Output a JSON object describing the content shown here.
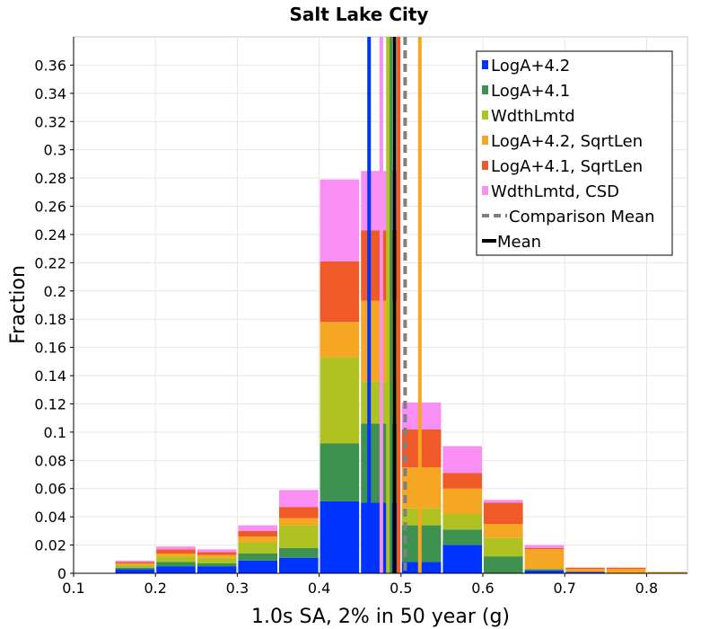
{
  "chart_data": {
    "type": "bar",
    "stacked": true,
    "title": "Salt Lake City",
    "xlabel": "1.0s SA, 2% in 50 year (g)",
    "ylabel": "Fraction",
    "xlim": [
      0.1,
      0.85
    ],
    "ylim": [
      0,
      0.38
    ],
    "x_ticks": [
      "0.1",
      "0.2",
      "0.3",
      "0.4",
      "0.5",
      "0.6",
      "0.7",
      "0.8"
    ],
    "y_ticks": [
      "0",
      "0.02",
      "0.04",
      "0.06",
      "0.08",
      "0.1",
      "0.12",
      "0.14",
      "0.16",
      "0.18",
      "0.2",
      "0.22",
      "0.24",
      "0.26",
      "0.28",
      "0.3",
      "0.32",
      "0.34",
      "0.36"
    ],
    "grid": true,
    "legend_position": "top-right",
    "bin_width": 0.05,
    "bin_centers": [
      0.125,
      0.175,
      0.225,
      0.275,
      0.325,
      0.375,
      0.425,
      0.475,
      0.525,
      0.575,
      0.625,
      0.675,
      0.725,
      0.775,
      0.825
    ],
    "series": [
      {
        "name": "LogA+4.2",
        "color": "#0033ff",
        "values": [
          0.0,
          0.003,
          0.005,
          0.005,
          0.009,
          0.011,
          0.051,
          0.05,
          0.008,
          0.02,
          0.0,
          0.002,
          0.001,
          0.0,
          0.0
        ]
      },
      {
        "name": "LogA+4.1",
        "color": "#3f9150",
        "values": [
          0.0,
          0.001,
          0.003,
          0.002,
          0.005,
          0.007,
          0.041,
          0.056,
          0.026,
          0.011,
          0.012,
          0.001,
          0.0,
          0.0,
          0.0
        ]
      },
      {
        "name": "WdthLmtd",
        "color": "#b0c222",
        "values": [
          0.0,
          0.002,
          0.004,
          0.004,
          0.008,
          0.016,
          0.061,
          0.03,
          0.012,
          0.011,
          0.013,
          0.0,
          0.0,
          0.0,
          0.0
        ]
      },
      {
        "name": "LogA+4.2, SqrtLen",
        "color": "#f5a623",
        "values": [
          0.0,
          0.001,
          0.002,
          0.002,
          0.004,
          0.005,
          0.025,
          0.057,
          0.029,
          0.018,
          0.01,
          0.014,
          0.002,
          0.003,
          0.001
        ]
      },
      {
        "name": "LogA+4.1, SqrtLen",
        "color": "#f05a28",
        "values": [
          0.0,
          0.001,
          0.003,
          0.002,
          0.004,
          0.008,
          0.043,
          0.05,
          0.027,
          0.011,
          0.015,
          0.001,
          0.001,
          0.001,
          0.0
        ]
      },
      {
        "name": "WdthLmtd, CSD",
        "color": "#f98ef5",
        "values": [
          0.0,
          0.001,
          0.002,
          0.002,
          0.004,
          0.012,
          0.058,
          0.042,
          0.019,
          0.019,
          0.002,
          0.002,
          0.0,
          0.0,
          0.0
        ]
      }
    ],
    "vertical_lines": [
      {
        "label": "LogA+4.2",
        "x": 0.461,
        "color": "#0033ff",
        "style": "solid"
      },
      {
        "label": "LogA+4.1",
        "x": 0.487,
        "color": "#3f9150",
        "style": "solid"
      },
      {
        "label": "WdthLmtd",
        "x": 0.484,
        "color": "#b0c222",
        "style": "solid"
      },
      {
        "label": "LogA+4.2, SqrtLen",
        "x": 0.523,
        "color": "#f5a623",
        "style": "solid"
      },
      {
        "label": "LogA+4.1, SqrtLen",
        "x": 0.497,
        "color": "#f05a28",
        "style": "solid"
      },
      {
        "label": "WdthLmtd, CSD",
        "x": 0.476,
        "color": "#f98ef5",
        "style": "solid"
      },
      {
        "label": "Comparison Mean",
        "x": 0.505,
        "color": "#808080",
        "style": "dashed"
      },
      {
        "label": "Mean",
        "x": 0.492,
        "color": "#000000",
        "style": "solid"
      }
    ],
    "legend": [
      {
        "label": "LogA+4.2",
        "color": "#0033ff",
        "marker": "square"
      },
      {
        "label": "LogA+4.1",
        "color": "#3f9150",
        "marker": "square"
      },
      {
        "label": "WdthLmtd",
        "color": "#b0c222",
        "marker": "square"
      },
      {
        "label": "LogA+4.2, SqrtLen",
        "color": "#f5a623",
        "marker": "square"
      },
      {
        "label": "LogA+4.1, SqrtLen",
        "color": "#f05a28",
        "marker": "square"
      },
      {
        "label": "WdthLmtd, CSD",
        "color": "#f98ef5",
        "marker": "square"
      },
      {
        "label": "Comparison Mean",
        "color": "#808080",
        "marker": "dashed-line"
      },
      {
        "label": "Mean",
        "color": "#000000",
        "marker": "line"
      }
    ]
  }
}
